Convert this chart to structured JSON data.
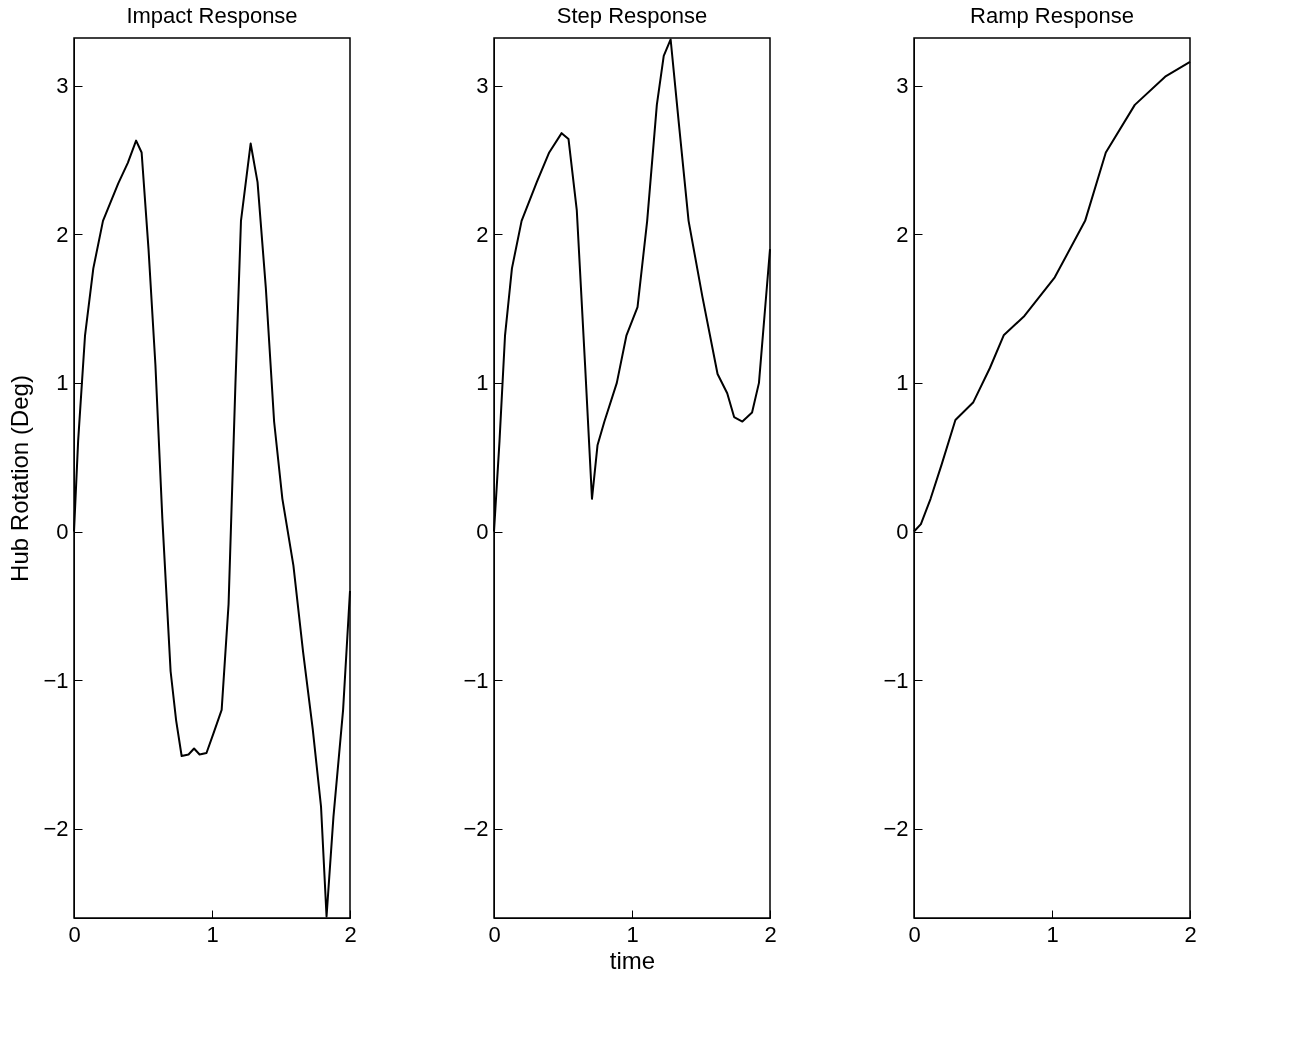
{
  "chart_data": [
    {
      "type": "line",
      "title": "Impact Response",
      "ylabel": "Hub Rotation (Deg)",
      "color": "#000000",
      "grid": false,
      "xlim": [
        0,
        2
      ],
      "xticks": [
        0,
        1,
        2
      ],
      "ylim": [
        -2.6,
        3.32
      ],
      "yticks": [
        -2,
        -1,
        0,
        1,
        2,
        3
      ],
      "x": [
        0,
        0.03,
        0.08,
        0.14,
        0.21,
        0.32,
        0.39,
        0.45,
        0.49,
        0.54,
        0.59,
        0.64,
        0.7,
        0.74,
        0.78,
        0.83,
        0.87,
        0.91,
        0.96,
        1.01,
        1.07,
        1.12,
        1.17,
        1.21,
        1.28,
        1.33,
        1.39,
        1.45,
        1.51,
        1.59,
        1.66,
        1.73,
        1.79,
        1.83,
        1.88,
        1.95,
        1.99,
        2
      ],
      "values": [
        0,
        0.61,
        1.32,
        1.77,
        2.09,
        2.34,
        2.48,
        2.63,
        2.55,
        1.9,
        1.12,
        0.09,
        -0.94,
        -1.27,
        -1.51,
        -1.5,
        -1.46,
        -1.5,
        -1.49,
        -1.36,
        -1.2,
        -0.49,
        1.0,
        2.09,
        2.61,
        2.35,
        1.64,
        0.74,
        0.22,
        -0.23,
        -0.81,
        -1.33,
        -1.85,
        -2.59,
        -1.92,
        -1.2,
        -0.56,
        -0.4
      ]
    },
    {
      "type": "line",
      "title": "Step Response",
      "xlabel": "time",
      "color": "#000000",
      "grid": false,
      "xlim": [
        0,
        2
      ],
      "xticks": [
        0,
        1,
        2
      ],
      "ylim": [
        -2.6,
        3.32
      ],
      "yticks": [
        -2,
        -1,
        0,
        1,
        2,
        3
      ],
      "x": [
        0,
        0.04,
        0.08,
        0.13,
        0.2,
        0.31,
        0.4,
        0.49,
        0.54,
        0.6,
        0.66,
        0.71,
        0.75,
        0.8,
        0.89,
        0.96,
        1.04,
        1.11,
        1.18,
        1.23,
        1.28,
        1.34,
        1.41,
        1.51,
        1.62,
        1.69,
        1.74,
        1.8,
        1.87,
        1.92,
        1.96,
        2
      ],
      "values": [
        0,
        0.61,
        1.32,
        1.77,
        2.09,
        2.35,
        2.55,
        2.68,
        2.64,
        2.16,
        1.12,
        0.22,
        0.58,
        0.74,
        1.0,
        1.32,
        1.51,
        2.09,
        2.87,
        3.2,
        3.31,
        2.74,
        2.09,
        1.58,
        1.06,
        0.93,
        0.77,
        0.74,
        0.8,
        1.0,
        1.45,
        1.9
      ]
    },
    {
      "type": "line",
      "title": "Ramp Response",
      "color": "#000000",
      "grid": false,
      "xlim": [
        0,
        2
      ],
      "xticks": [
        0,
        1,
        2
      ],
      "ylim": [
        -2.6,
        3.32
      ],
      "yticks": [
        -2,
        -1,
        0,
        1,
        2,
        3
      ],
      "x": [
        0,
        0.05,
        0.12,
        0.2,
        0.3,
        0.43,
        0.55,
        0.65,
        0.8,
        1.02,
        1.24,
        1.39,
        1.6,
        1.82,
        2
      ],
      "values": [
        0,
        0.05,
        0.22,
        0.45,
        0.75,
        0.87,
        1.1,
        1.32,
        1.45,
        1.71,
        2.09,
        2.55,
        2.87,
        3.06,
        3.16
      ]
    }
  ]
}
